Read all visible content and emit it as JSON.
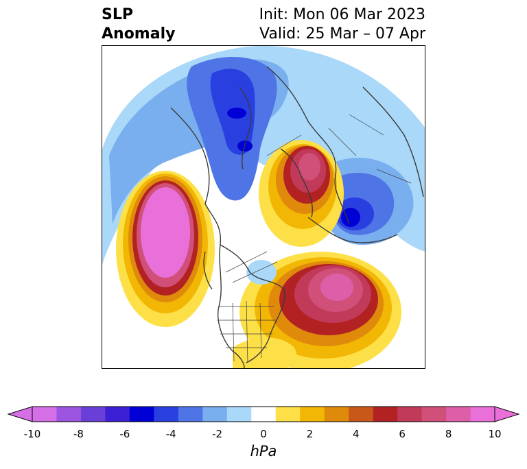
{
  "title": {
    "left_line1": "SLP",
    "left_line2": "Anomaly",
    "right_line1": "Init: Mon 06 Mar 2023",
    "right_line2": "Valid: 25 Mar – 07 Apr"
  },
  "map": {
    "projection": "north-polar-stereographic",
    "features": [
      "coastlines",
      "country-borders",
      "us-state-borders"
    ]
  },
  "colorbar": {
    "units": "hPa",
    "extend": "both",
    "levels": [
      -10,
      -9,
      -8,
      -7,
      -6,
      -5,
      -4,
      -3,
      -2,
      -1,
      1,
      2,
      3,
      4,
      5,
      6,
      7,
      8,
      9,
      10
    ],
    "colors": [
      "#d46fe6",
      "#9c55e0",
      "#6a3fd8",
      "#3b1fd4",
      "#0000d6",
      "#2a3fe0",
      "#4f74e6",
      "#7aafef",
      "#a9d8f8",
      "#ffffff",
      "#fde047",
      "#f2b705",
      "#e08a0c",
      "#c8581a",
      "#b22222",
      "#c23a5a",
      "#d0507a",
      "#dc5fa8",
      "#e870d8"
    ],
    "under_color": "#d46fe6",
    "over_color": "#e870d8",
    "tick_labels": [
      "-10",
      "-8",
      "-6",
      "-4",
      "-2",
      "0",
      "2",
      "4",
      "6",
      "8",
      "10"
    ]
  }
}
